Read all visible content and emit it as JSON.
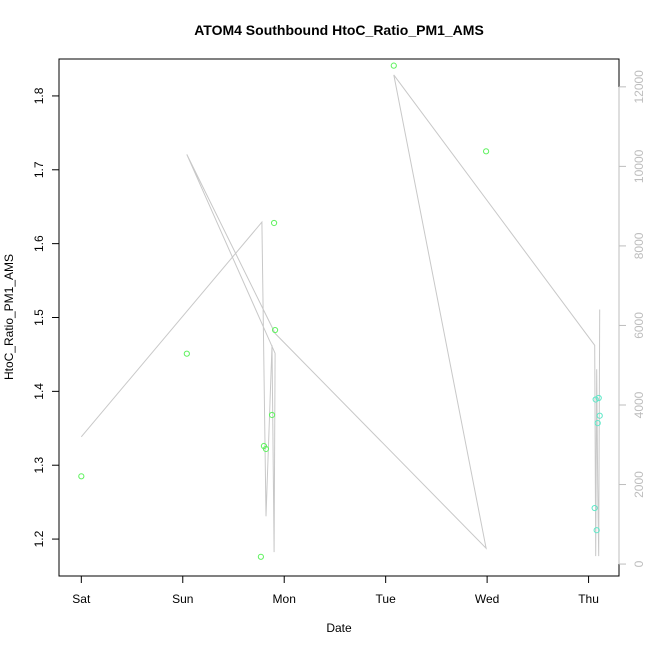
{
  "chart_data": {
    "type": "scatter",
    "title": "ATOM4 Southbound HtoC_Ratio_PM1_AMS",
    "xlabel": "Date",
    "ylabel": "HtoC_Ratio_PM1_AMS",
    "x_ticks": [
      "Sat",
      "Sun",
      "Mon",
      "Tue",
      "Wed",
      "Thu"
    ],
    "xlim_days": [
      -0.22,
      5.3
    ],
    "ylim": [
      1.15,
      1.85
    ],
    "y_ticks": [
      1.2,
      1.3,
      1.4,
      1.5,
      1.6,
      1.7,
      1.8
    ],
    "y2lim": [
      -300,
      12700
    ],
    "y2_ticks": [
      0,
      2000,
      4000,
      6000,
      8000,
      10000,
      12000
    ],
    "grid": false,
    "series": [
      {
        "role": "points",
        "colors": {
          "low": "#5ef25e",
          "high": "#5ee8c8"
        },
        "points": [
          {
            "x": 0.0,
            "y": 1.285
          },
          {
            "x": 1.04,
            "y": 1.451
          },
          {
            "x": 1.77,
            "y": 1.176
          },
          {
            "x": 1.8,
            "y": 1.326
          },
          {
            "x": 1.82,
            "y": 1.322
          },
          {
            "x": 1.88,
            "y": 1.368
          },
          {
            "x": 1.9,
            "y": 1.628
          },
          {
            "x": 1.91,
            "y": 1.483
          },
          {
            "x": 3.08,
            "y": 1.841
          },
          {
            "x": 3.99,
            "y": 1.725
          },
          {
            "x": 5.06,
            "y": 1.242
          },
          {
            "x": 5.07,
            "y": 1.389
          },
          {
            "x": 5.08,
            "y": 1.212
          },
          {
            "x": 5.09,
            "y": 1.357
          },
          {
            "x": 5.1,
            "y": 1.391
          },
          {
            "x": 5.11,
            "y": 1.367
          }
        ]
      },
      {
        "role": "line",
        "axis": "right",
        "color": "#c8c8c8",
        "points": [
          {
            "x": 0.0,
            "y": 3200
          },
          {
            "x": 1.78,
            "y": 8600
          },
          {
            "x": 1.82,
            "y": 1200
          },
          {
            "x": 1.88,
            "y": 5500
          },
          {
            "x": 1.9,
            "y": 300
          },
          {
            "x": 1.91,
            "y": 5300
          },
          {
            "x": 1.04,
            "y": 10300
          },
          {
            "x": 1.91,
            "y": 5800
          },
          {
            "x": 3.99,
            "y": 400
          },
          {
            "x": 3.08,
            "y": 12300
          },
          {
            "x": 5.06,
            "y": 5500
          },
          {
            "x": 5.07,
            "y": 200
          },
          {
            "x": 5.08,
            "y": 4900
          },
          {
            "x": 5.09,
            "y": 2000
          },
          {
            "x": 5.1,
            "y": 200
          },
          {
            "x": 5.11,
            "y": 6400
          }
        ]
      }
    ]
  }
}
